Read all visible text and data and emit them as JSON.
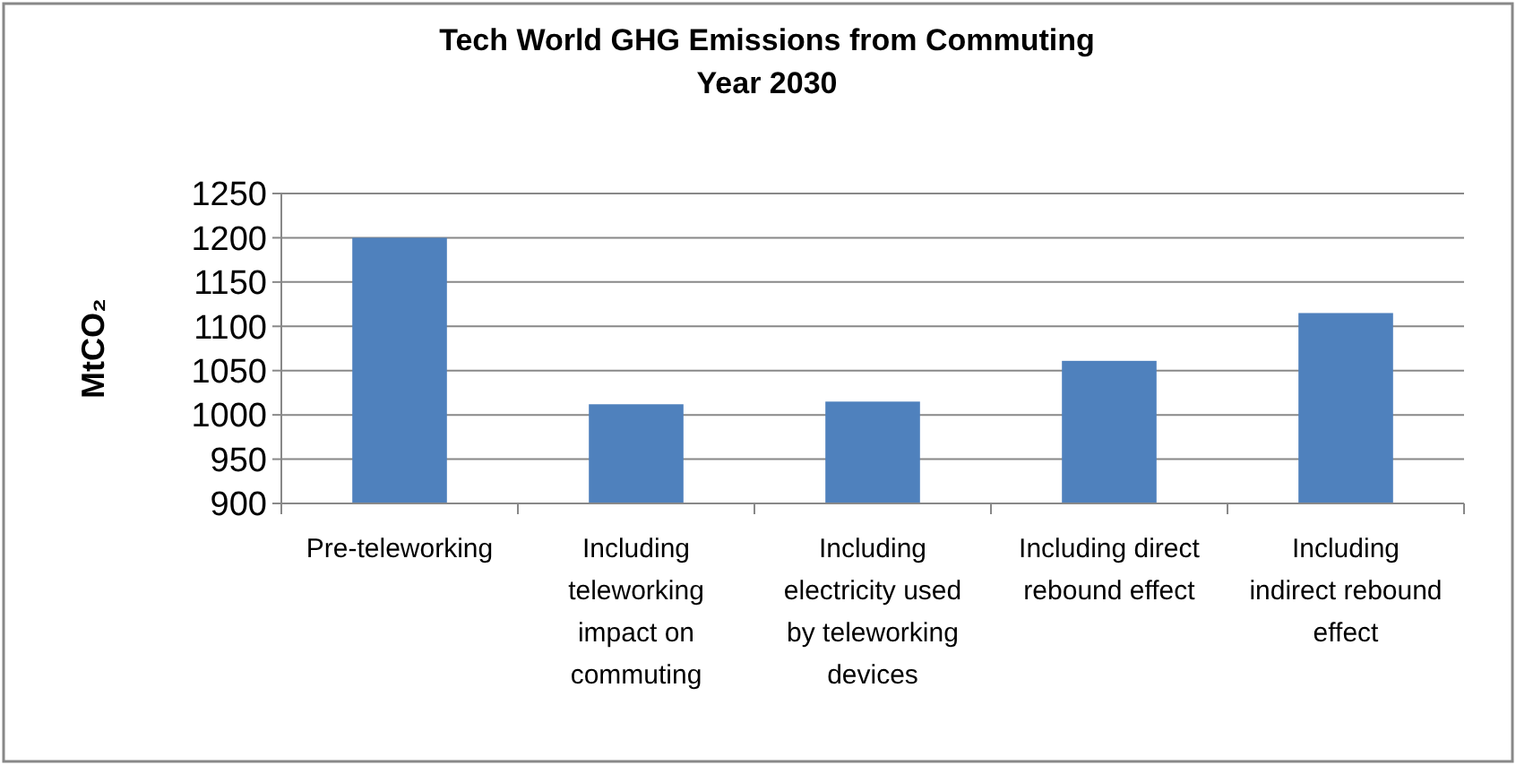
{
  "chart_data": {
    "type": "bar",
    "title": "Tech World  GHG Emissions from Commuting\nYear 2030",
    "ylabel": "MtCO₂",
    "categories": [
      "Pre-teleworking",
      "Including teleworking impact on commuting",
      "Including electricity used by teleworking devices",
      "Including direct rebound effect",
      "Including indirect rebound effect"
    ],
    "values": [
      1200,
      1012,
      1015,
      1061,
      1115
    ],
    "color": "#4f81bd",
    "ylim": [
      900,
      1250
    ],
    "yticks": [
      900,
      950,
      1000,
      1050,
      1100,
      1150,
      1200,
      1250
    ],
    "grid": "y"
  }
}
